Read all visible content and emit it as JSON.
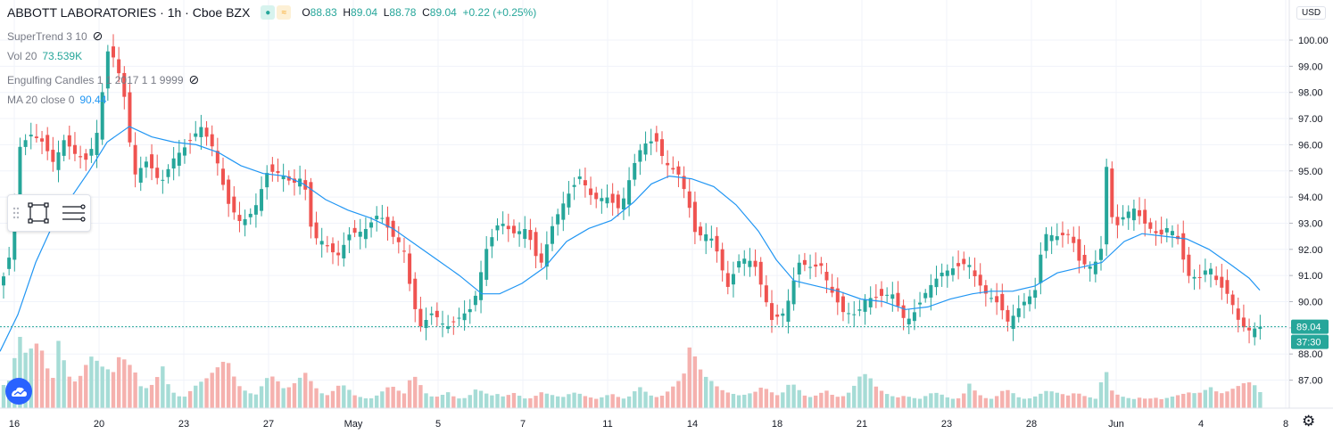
{
  "header": {
    "symbol": "ABBOTT LABORATORIES · 1h · Cboe BZX",
    "ohlc": [
      {
        "k": "O",
        "v": "88.83"
      },
      {
        "k": "H",
        "v": "89.04"
      },
      {
        "k": "L",
        "v": "88.78"
      },
      {
        "k": "C",
        "v": "89.04"
      },
      {
        "k": "",
        "v": "+0.22 (+0.25%)"
      }
    ]
  },
  "indicators": {
    "supertrend": "SuperTrend 3 10",
    "vol_label": "Vol 20",
    "vol_value": "73.539K",
    "engulfing": "Engulfing Candles 1 1 2017 1 1 9999",
    "ma_label": "MA 20 close 0",
    "ma_value": "90.44"
  },
  "axis": {
    "currency": "USD",
    "last_price": "89.04",
    "countdown": "37:30"
  },
  "colors": {
    "up": "#26a69a",
    "down": "#ef5350",
    "ma": "#2196f3",
    "vol_up": "#a6dcd6",
    "vol_down": "#f5b1ae"
  },
  "chart_data": {
    "type": "candlestick",
    "symbol": "ABBOTT LABORATORIES",
    "interval": "1h",
    "exchange": "Cboe BZX",
    "ylim": [
      87,
      100
    ],
    "y_ticks": [
      87,
      88,
      89,
      90,
      91,
      92,
      93,
      94,
      95,
      96,
      97,
      98,
      99,
      100
    ],
    "x_ticks": [
      "16",
      "20",
      "23",
      "27",
      "May",
      "5",
      "7",
      "11",
      "14",
      "18",
      "21",
      "23",
      "28",
      "Jun",
      "4",
      "8"
    ],
    "close_path": [
      [
        0,
        90.5
      ],
      [
        12,
        91.9
      ],
      [
        22,
        95.9
      ],
      [
        34,
        96.4
      ],
      [
        48,
        96.1
      ],
      [
        60,
        95.3
      ],
      [
        72,
        96.2
      ],
      [
        85,
        95.6
      ],
      [
        98,
        95.4
      ],
      [
        110,
        96.6
      ],
      [
        120,
        99.6
      ],
      [
        128,
        99.3
      ],
      [
        138,
        98.2
      ],
      [
        150,
        94.8
      ],
      [
        165,
        95.4
      ],
      [
        180,
        94.5
      ],
      [
        195,
        95.5
      ],
      [
        210,
        96.0
      ],
      [
        225,
        96.7
      ],
      [
        240,
        95.8
      ],
      [
        255,
        93.8
      ],
      [
        270,
        93.0
      ],
      [
        285,
        93.5
      ],
      [
        300,
        95.0
      ],
      [
        315,
        94.9
      ],
      [
        328,
        94.5
      ],
      [
        340,
        94.8
      ],
      [
        350,
        92.5
      ],
      [
        362,
        92.3
      ],
      [
        378,
        91.7
      ],
      [
        392,
        92.6
      ],
      [
        408,
        92.7
      ],
      [
        425,
        93.4
      ],
      [
        440,
        92.5
      ],
      [
        452,
        92.1
      ],
      [
        460,
        90.5
      ],
      [
        470,
        89.0
      ],
      [
        485,
        89.6
      ],
      [
        500,
        89.0
      ],
      [
        515,
        89.4
      ],
      [
        530,
        89.8
      ],
      [
        545,
        92.0
      ],
      [
        560,
        93.1
      ],
      [
        575,
        92.6
      ],
      [
        590,
        92.8
      ],
      [
        605,
        91.3
      ],
      [
        620,
        93.0
      ],
      [
        635,
        94.0
      ],
      [
        650,
        94.8
      ],
      [
        665,
        93.9
      ],
      [
        680,
        94.0
      ],
      [
        695,
        93.5
      ],
      [
        710,
        95.2
      ],
      [
        720,
        96.0
      ],
      [
        735,
        96.2
      ],
      [
        745,
        95.3
      ],
      [
        760,
        94.9
      ],
      [
        770,
        94.0
      ],
      [
        780,
        92.5
      ],
      [
        795,
        92.6
      ],
      [
        805,
        91.8
      ],
      [
        815,
        90.5
      ],
      [
        830,
        91.7
      ],
      [
        845,
        91.5
      ],
      [
        855,
        90.4
      ],
      [
        865,
        89.3
      ],
      [
        880,
        89.6
      ],
      [
        895,
        91.5
      ],
      [
        910,
        91.3
      ],
      [
        920,
        91.4
      ],
      [
        930,
        90.5
      ],
      [
        945,
        89.6
      ],
      [
        960,
        89.5
      ],
      [
        970,
        90.1
      ],
      [
        985,
        90.2
      ],
      [
        1000,
        90.3
      ],
      [
        1015,
        89.2
      ],
      [
        1025,
        89.6
      ],
      [
        1040,
        90.5
      ],
      [
        1055,
        91.1
      ],
      [
        1070,
        91.3
      ],
      [
        1085,
        91.5
      ],
      [
        1095,
        90.8
      ],
      [
        1105,
        90.3
      ],
      [
        1120,
        89.9
      ],
      [
        1130,
        89.2
      ],
      [
        1145,
        89.9
      ],
      [
        1160,
        90.4
      ],
      [
        1170,
        92.6
      ],
      [
        1185,
        92.5
      ],
      [
        1200,
        92.6
      ],
      [
        1210,
        91.5
      ],
      [
        1225,
        91.3
      ],
      [
        1235,
        92.1
      ],
      [
        1240,
        95.2
      ],
      [
        1248,
        92.7
      ],
      [
        1260,
        93.3
      ],
      [
        1270,
        93.6
      ],
      [
        1285,
        92.9
      ],
      [
        1300,
        92.5
      ],
      [
        1310,
        92.9
      ],
      [
        1322,
        92.3
      ],
      [
        1330,
        91.0
      ],
      [
        1345,
        90.9
      ],
      [
        1355,
        91.4
      ],
      [
        1365,
        90.7
      ],
      [
        1378,
        90.2
      ],
      [
        1390,
        89.1
      ],
      [
        1400,
        88.9
      ],
      [
        1412,
        89.04
      ]
    ],
    "ma20_path": [
      [
        0,
        88.1
      ],
      [
        20,
        89.5
      ],
      [
        40,
        91.5
      ],
      [
        60,
        93.0
      ],
      [
        80,
        94.0
      ],
      [
        100,
        95.0
      ],
      [
        120,
        96.1
      ],
      [
        145,
        96.7
      ],
      [
        170,
        96.3
      ],
      [
        195,
        96.1
      ],
      [
        220,
        96.0
      ],
      [
        245,
        95.7
      ],
      [
        270,
        95.2
      ],
      [
        295,
        94.9
      ],
      [
        320,
        94.8
      ],
      [
        340,
        94.5
      ],
      [
        365,
        93.9
      ],
      [
        390,
        93.5
      ],
      [
        415,
        93.2
      ],
      [
        440,
        92.8
      ],
      [
        465,
        92.2
      ],
      [
        490,
        91.6
      ],
      [
        515,
        91.0
      ],
      [
        540,
        90.3
      ],
      [
        560,
        90.3
      ],
      [
        585,
        90.7
      ],
      [
        610,
        91.3
      ],
      [
        635,
        92.3
      ],
      [
        660,
        92.8
      ],
      [
        685,
        93.1
      ],
      [
        710,
        93.8
      ],
      [
        730,
        94.5
      ],
      [
        750,
        94.8
      ],
      [
        775,
        94.7
      ],
      [
        800,
        94.4
      ],
      [
        825,
        93.7
      ],
      [
        850,
        92.7
      ],
      [
        870,
        91.6
      ],
      [
        890,
        90.8
      ],
      [
        915,
        90.6
      ],
      [
        940,
        90.4
      ],
      [
        965,
        90.1
      ],
      [
        990,
        90.0
      ],
      [
        1015,
        89.7
      ],
      [
        1040,
        89.8
      ],
      [
        1065,
        90.1
      ],
      [
        1090,
        90.3
      ],
      [
        1110,
        90.4
      ],
      [
        1135,
        90.4
      ],
      [
        1160,
        90.6
      ],
      [
        1185,
        91.1
      ],
      [
        1210,
        91.3
      ],
      [
        1235,
        91.5
      ],
      [
        1260,
        92.3
      ],
      [
        1280,
        92.6
      ],
      [
        1305,
        92.5
      ],
      [
        1330,
        92.4
      ],
      [
        1355,
        92.0
      ],
      [
        1380,
        91.4
      ],
      [
        1400,
        90.9
      ],
      [
        1412,
        90.44
      ]
    ],
    "volume_path": [
      [
        0,
        30
      ],
      [
        8,
        22
      ],
      [
        16,
        55
      ],
      [
        24,
        86
      ],
      [
        30,
        55
      ],
      [
        38,
        75
      ],
      [
        46,
        68
      ],
      [
        54,
        42
      ],
      [
        62,
        30
      ],
      [
        66,
        82
      ],
      [
        74,
        42
      ],
      [
        82,
        28
      ],
      [
        90,
        36
      ],
      [
        98,
        52
      ],
      [
        104,
        60
      ],
      [
        112,
        48
      ],
      [
        120,
        44
      ],
      [
        128,
        40
      ],
      [
        134,
        60
      ],
      [
        142,
        52
      ],
      [
        150,
        44
      ],
      [
        158,
        24
      ],
      [
        166,
        22
      ],
      [
        174,
        30
      ],
      [
        182,
        48
      ],
      [
        190,
        22
      ],
      [
        198,
        14
      ],
      [
        206,
        12
      ],
      [
        214,
        20
      ],
      [
        222,
        28
      ],
      [
        230,
        32
      ],
      [
        238,
        40
      ],
      [
        246,
        48
      ],
      [
        254,
        56
      ],
      [
        262,
        36
      ],
      [
        270,
        22
      ],
      [
        278,
        18
      ],
      [
        286,
        14
      ],
      [
        294,
        26
      ],
      [
        302,
        38
      ],
      [
        310,
        32
      ],
      [
        318,
        22
      ],
      [
        326,
        24
      ],
      [
        334,
        32
      ],
      [
        342,
        40
      ],
      [
        350,
        28
      ],
      [
        358,
        18
      ],
      [
        366,
        14
      ],
      [
        374,
        20
      ],
      [
        382,
        28
      ],
      [
        390,
        22
      ],
      [
        398,
        14
      ],
      [
        406,
        12
      ],
      [
        414,
        10
      ],
      [
        422,
        14
      ],
      [
        430,
        20
      ],
      [
        438,
        26
      ],
      [
        446,
        20
      ],
      [
        454,
        16
      ],
      [
        462,
        40
      ],
      [
        470,
        28
      ],
      [
        478,
        16
      ],
      [
        486,
        12
      ],
      [
        494,
        14
      ],
      [
        502,
        18
      ],
      [
        510,
        12
      ],
      [
        518,
        10
      ],
      [
        526,
        14
      ],
      [
        534,
        22
      ],
      [
        542,
        18
      ],
      [
        550,
        14
      ],
      [
        558,
        16
      ],
      [
        566,
        12
      ],
      [
        574,
        18
      ],
      [
        582,
        14
      ],
      [
        590,
        10
      ],
      [
        598,
        12
      ],
      [
        606,
        18
      ],
      [
        614,
        16
      ],
      [
        622,
        14
      ],
      [
        630,
        12
      ],
      [
        638,
        16
      ],
      [
        646,
        18
      ],
      [
        654,
        14
      ],
      [
        662,
        12
      ],
      [
        670,
        10
      ],
      [
        678,
        14
      ],
      [
        686,
        16
      ],
      [
        694,
        12
      ],
      [
        702,
        10
      ],
      [
        710,
        18
      ],
      [
        718,
        24
      ],
      [
        726,
        16
      ],
      [
        734,
        12
      ],
      [
        742,
        14
      ],
      [
        750,
        20
      ],
      [
        758,
        28
      ],
      [
        766,
        36
      ],
      [
        774,
        74
      ],
      [
        782,
        48
      ],
      [
        790,
        36
      ],
      [
        798,
        30
      ],
      [
        806,
        22
      ],
      [
        814,
        18
      ],
      [
        822,
        16
      ],
      [
        830,
        14
      ],
      [
        838,
        16
      ],
      [
        846,
        18
      ],
      [
        854,
        24
      ],
      [
        862,
        20
      ],
      [
        870,
        14
      ],
      [
        878,
        18
      ],
      [
        886,
        30
      ],
      [
        894,
        22
      ],
      [
        902,
        14
      ],
      [
        910,
        12
      ],
      [
        918,
        16
      ],
      [
        926,
        20
      ],
      [
        934,
        14
      ],
      [
        942,
        12
      ],
      [
        950,
        16
      ],
      [
        958,
        26
      ],
      [
        966,
        40
      ],
      [
        974,
        36
      ],
      [
        982,
        24
      ],
      [
        990,
        18
      ],
      [
        998,
        14
      ],
      [
        1006,
        12
      ],
      [
        1014,
        14
      ],
      [
        1022,
        12
      ],
      [
        1030,
        10
      ],
      [
        1038,
        14
      ],
      [
        1046,
        18
      ],
      [
        1054,
        16
      ],
      [
        1062,
        12
      ],
      [
        1070,
        10
      ],
      [
        1078,
        12
      ],
      [
        1086,
        28
      ],
      [
        1094,
        18
      ],
      [
        1102,
        12
      ],
      [
        1110,
        10
      ],
      [
        1118,
        14
      ],
      [
        1126,
        22
      ],
      [
        1134,
        18
      ],
      [
        1142,
        12
      ],
      [
        1150,
        10
      ],
      [
        1158,
        12
      ],
      [
        1166,
        16
      ],
      [
        1174,
        20
      ],
      [
        1182,
        18
      ],
      [
        1190,
        16
      ],
      [
        1198,
        14
      ],
      [
        1206,
        18
      ],
      [
        1214,
        14
      ],
      [
        1222,
        12
      ],
      [
        1230,
        10
      ],
      [
        1238,
        48
      ],
      [
        1246,
        20
      ],
      [
        1254,
        14
      ],
      [
        1262,
        12
      ],
      [
        1270,
        10
      ],
      [
        1278,
        12
      ],
      [
        1286,
        10
      ],
      [
        1294,
        12
      ],
      [
        1302,
        10
      ],
      [
        1310,
        12
      ],
      [
        1318,
        14
      ],
      [
        1326,
        16
      ],
      [
        1334,
        18
      ],
      [
        1342,
        16
      ],
      [
        1350,
        20
      ],
      [
        1358,
        24
      ],
      [
        1366,
        16
      ],
      [
        1374,
        18
      ],
      [
        1382,
        22
      ],
      [
        1390,
        26
      ],
      [
        1398,
        30
      ],
      [
        1406,
        26
      ],
      [
        1412,
        18
      ]
    ]
  }
}
